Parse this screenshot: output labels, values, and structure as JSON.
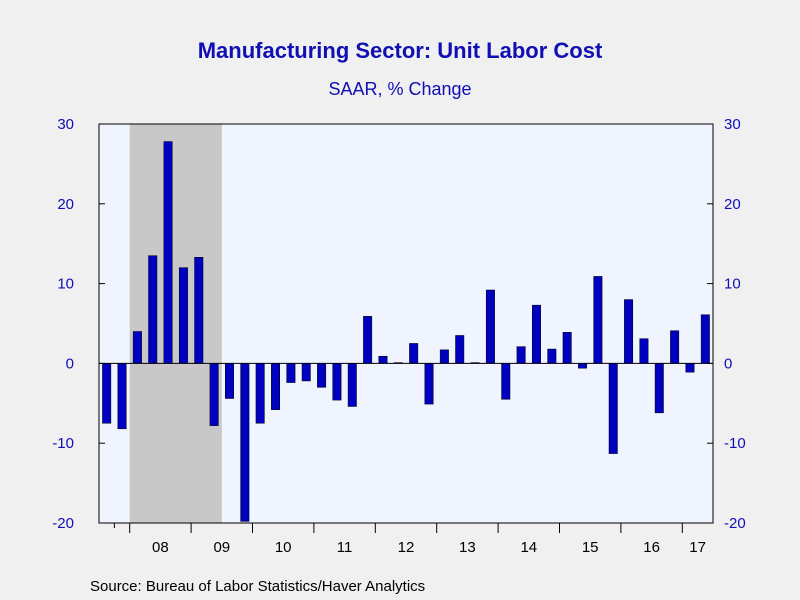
{
  "chart_data": {
    "type": "bar",
    "title": "Manufacturing Sector: Unit Labor Cost",
    "subtitle": "SAAR, % Change",
    "source": "Source:  Bureau of Labor Statistics/Haver Analytics",
    "ylim": [
      -20,
      30
    ],
    "y_ticks": [
      30,
      20,
      10,
      0,
      -10,
      -20
    ],
    "x_tick_labels": [
      "08",
      "09",
      "10",
      "11",
      "12",
      "13",
      "14",
      "15",
      "16",
      "17"
    ],
    "recession_shading": {
      "from": "2008-Q1",
      "to": "2009-Q2",
      "color": "#c8c8c8"
    },
    "bar_color": "#0000c0",
    "plot_background": "#f0f4ff",
    "categories": [
      "2007-Q3",
      "2007-Q4",
      "2008-Q1",
      "2008-Q2",
      "2008-Q3",
      "2008-Q4",
      "2009-Q1",
      "2009-Q2",
      "2009-Q3",
      "2009-Q4",
      "2010-Q1",
      "2010-Q2",
      "2010-Q3",
      "2010-Q4",
      "2011-Q1",
      "2011-Q2",
      "2011-Q3",
      "2011-Q4",
      "2012-Q1",
      "2012-Q2",
      "2012-Q3",
      "2012-Q4",
      "2013-Q1",
      "2013-Q2",
      "2013-Q3",
      "2013-Q4",
      "2014-Q1",
      "2014-Q2",
      "2014-Q3",
      "2014-Q4",
      "2015-Q1",
      "2015-Q2",
      "2015-Q3",
      "2015-Q4",
      "2016-Q1",
      "2016-Q2",
      "2016-Q3",
      "2016-Q4",
      "2017-Q1",
      "2017-Q2"
    ],
    "values": [
      -7.5,
      -8.2,
      4.0,
      13.5,
      27.8,
      12.0,
      13.3,
      -7.8,
      -4.4,
      -19.8,
      -7.5,
      -5.8,
      -2.4,
      -2.2,
      -3.0,
      -4.6,
      -5.4,
      5.9,
      0.9,
      0.1,
      2.5,
      -5.1,
      1.7,
      3.5,
      0.1,
      9.2,
      -4.5,
      2.1,
      7.3,
      1.8,
      3.9,
      -0.6,
      10.9,
      -11.3,
      8.0,
      3.1,
      -6.2,
      4.1,
      -1.1,
      6.1
    ]
  }
}
